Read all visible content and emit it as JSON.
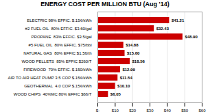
{
  "chart_data": {
    "type": "bar",
    "orientation": "horizontal",
    "title": "ENERGY COST PER MILLION BTU (Aug '14)",
    "categories": [
      "WOOD CHIPS  40%MC 80% EFFIC $66/T",
      "GEOTHERMAL  4.0 COP $.15¢/kWh",
      "AIR TO AIR HEAT PUMP 3.5 COP $.15¢/kWh",
      "FIREWOOD  70% EFFIC. $.150/kWh",
      "WOOD PELLETS  85% EFFIC $260/T",
      "NATURAL GAS  80% EFFIC $1.56/th",
      "#5 FUEL OIL  80% EFFIC. $75/bbl",
      "PROPANE  83% EFFIC. $3.5/gal",
      "#2 FUEL OIL  80% EFFIC. $3.60/gal",
      "ELECTRIC 98% EFFIC. $.15¢/kWh"
    ],
    "values": [
      6.05,
      10.1,
      11.54,
      12.99,
      18.56,
      15.6,
      14.88,
      48.9,
      32.43,
      41.21
    ],
    "value_labels": [
      "$6.05",
      "$10.10",
      "$11.54",
      "$12.99",
      "$18.56",
      "$15.60",
      "$14.88",
      "$48.90",
      "$32.43",
      "$41.21"
    ],
    "data_labels": true,
    "color": "#cc0000",
    "xlim": [
      0,
      60
    ],
    "xticks": [
      {
        "value": 0,
        "label": "$-"
      },
      {
        "value": 10,
        "label": "$10"
      },
      {
        "value": 20,
        "label": "$20"
      },
      {
        "value": 30,
        "label": "$30"
      },
      {
        "value": 40,
        "label": "$40"
      },
      {
        "value": 50,
        "label": "$50"
      },
      {
        "value": 60,
        "label": "$60"
      }
    ],
    "grid": true
  }
}
